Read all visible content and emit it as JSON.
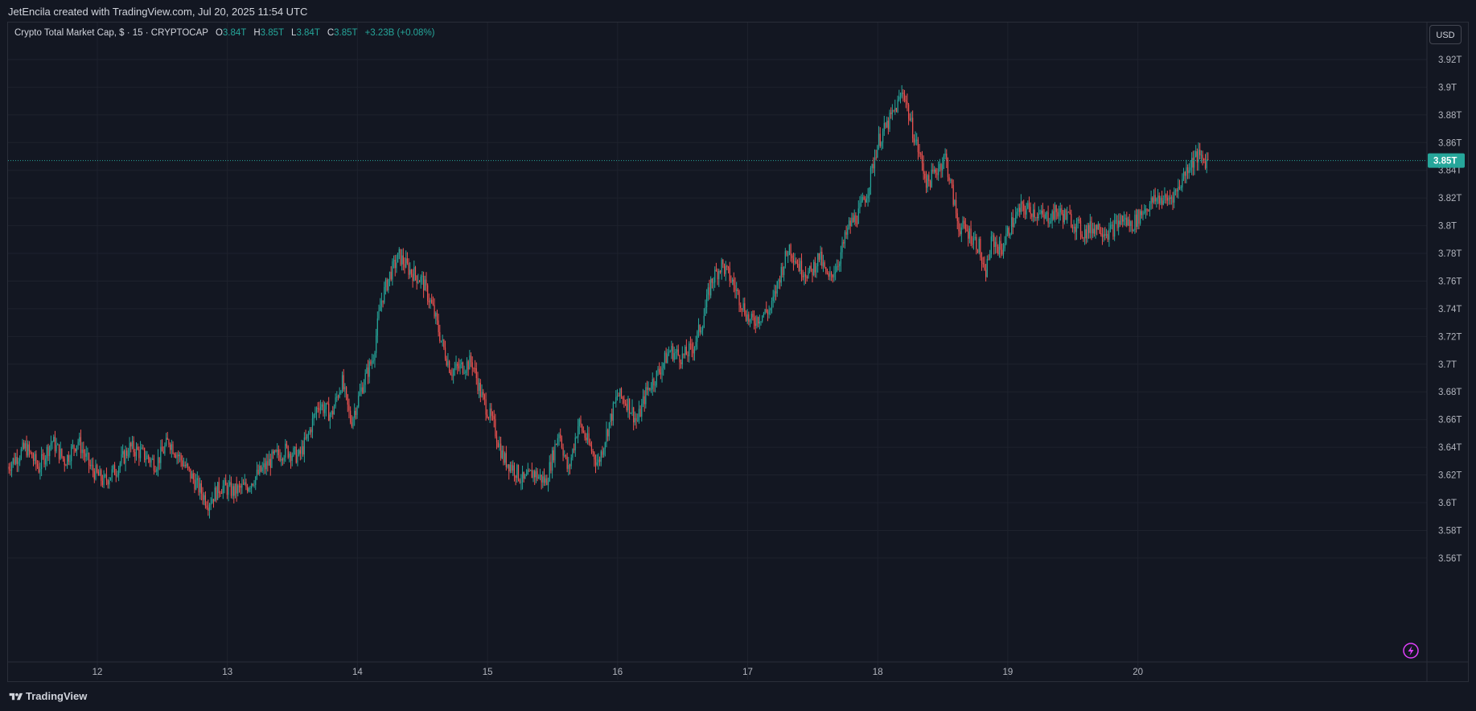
{
  "header": {
    "title": "JetEncila created with TradingView.com, Jul 20, 2025 11:54 UTC"
  },
  "legend": {
    "symbol": "Crypto Total Market Cap, $ · 15 · CRYPTOCAP",
    "open_label": "O",
    "open": "3.84T",
    "high_label": "H",
    "high": "3.85T",
    "low_label": "L",
    "low": "3.84T",
    "close_label": "C",
    "close": "3.85T",
    "change": "+3.23B (+0.08%)"
  },
  "currency_button": "USD",
  "footer": {
    "brand": "TradingView"
  },
  "icons": {
    "logo": "tradingview-logo-icon",
    "bolt": "lightning-bolt-icon"
  },
  "colors": {
    "up": "#26a69a",
    "down": "#ef5350",
    "background": "#131722",
    "grid": "#1e222d",
    "last_price": "#26a69a",
    "bolt": "#e040fb"
  },
  "chart_data": {
    "type": "candlestick",
    "title": "Crypto Total Market Cap, $ · 15 · CRYPTOCAP",
    "interval": "15",
    "grid": true,
    "ylim": [
      3.55,
      3.93
    ],
    "y_ticks": [
      3.56,
      3.58,
      3.6,
      3.62,
      3.64,
      3.66,
      3.68,
      3.7,
      3.72,
      3.74,
      3.76,
      3.78,
      3.8,
      3.82,
      3.84,
      3.86,
      3.88,
      3.9,
      3.92
    ],
    "y_tick_labels": [
      "3.56T",
      "3.58T",
      "3.6T",
      "3.62T",
      "3.64T",
      "3.66T",
      "3.68T",
      "3.7T",
      "3.72T",
      "3.74T",
      "3.76T",
      "3.78T",
      "3.8T",
      "3.82T",
      "3.84T",
      "3.86T",
      "3.88T",
      "3.9T",
      "3.92T"
    ],
    "xlim": [
      11.3,
      20.55
    ],
    "x_ticks": [
      12,
      13,
      14,
      15,
      16,
      17,
      18,
      19,
      20
    ],
    "x_tick_labels": [
      "12",
      "13",
      "14",
      "15",
      "16",
      "17",
      "18",
      "19",
      "20"
    ],
    "last_price": 3.847,
    "last_price_label": "3.85T",
    "close_path": [
      [
        11.3,
        3.625
      ],
      [
        11.45,
        3.64
      ],
      [
        11.55,
        3.625
      ],
      [
        11.65,
        3.645
      ],
      [
        11.75,
        3.63
      ],
      [
        11.85,
        3.645
      ],
      [
        11.95,
        3.625
      ],
      [
        12.05,
        3.615
      ],
      [
        12.15,
        3.625
      ],
      [
        12.25,
        3.64
      ],
      [
        12.35,
        3.635
      ],
      [
        12.45,
        3.628
      ],
      [
        12.55,
        3.645
      ],
      [
        12.65,
        3.63
      ],
      [
        12.75,
        3.615
      ],
      [
        12.85,
        3.6
      ],
      [
        12.95,
        3.612
      ],
      [
        13.05,
        3.608
      ],
      [
        13.15,
        3.612
      ],
      [
        13.25,
        3.622
      ],
      [
        13.35,
        3.632
      ],
      [
        13.45,
        3.638
      ],
      [
        13.55,
        3.633
      ],
      [
        13.62,
        3.648
      ],
      [
        13.7,
        3.672
      ],
      [
        13.8,
        3.663
      ],
      [
        13.88,
        3.688
      ],
      [
        13.95,
        3.658
      ],
      [
        14.05,
        3.688
      ],
      [
        14.12,
        3.705
      ],
      [
        14.18,
        3.745
      ],
      [
        14.25,
        3.765
      ],
      [
        14.32,
        3.778
      ],
      [
        14.4,
        3.768
      ],
      [
        14.5,
        3.76
      ],
      [
        14.58,
        3.74
      ],
      [
        14.65,
        3.715
      ],
      [
        14.72,
        3.695
      ],
      [
        14.8,
        3.698
      ],
      [
        14.88,
        3.702
      ],
      [
        14.95,
        3.678
      ],
      [
        15.05,
        3.655
      ],
      [
        15.12,
        3.632
      ],
      [
        15.2,
        3.625
      ],
      [
        15.28,
        3.615
      ],
      [
        15.35,
        3.622
      ],
      [
        15.45,
        3.615
      ],
      [
        15.55,
        3.652
      ],
      [
        15.62,
        3.622
      ],
      [
        15.7,
        3.658
      ],
      [
        15.78,
        3.642
      ],
      [
        15.85,
        3.628
      ],
      [
        15.92,
        3.652
      ],
      [
        16.0,
        3.678
      ],
      [
        16.08,
        3.672
      ],
      [
        16.15,
        3.658
      ],
      [
        16.22,
        3.68
      ],
      [
        16.32,
        3.695
      ],
      [
        16.4,
        3.71
      ],
      [
        16.5,
        3.705
      ],
      [
        16.58,
        3.712
      ],
      [
        16.65,
        3.73
      ],
      [
        16.72,
        3.76
      ],
      [
        16.8,
        3.772
      ],
      [
        16.88,
        3.76
      ],
      [
        16.95,
        3.745
      ],
      [
        17.02,
        3.73
      ],
      [
        17.1,
        3.735
      ],
      [
        17.18,
        3.74
      ],
      [
        17.25,
        3.765
      ],
      [
        17.32,
        3.785
      ],
      [
        17.4,
        3.77
      ],
      [
        17.48,
        3.765
      ],
      [
        17.55,
        3.778
      ],
      [
        17.62,
        3.76
      ],
      [
        17.7,
        3.775
      ],
      [
        17.78,
        3.8
      ],
      [
        17.85,
        3.808
      ],
      [
        17.92,
        3.825
      ],
      [
        18.0,
        3.86
      ],
      [
        18.07,
        3.872
      ],
      [
        18.14,
        3.885
      ],
      [
        18.2,
        3.898
      ],
      [
        18.25,
        3.875
      ],
      [
        18.32,
        3.852
      ],
      [
        18.38,
        3.83
      ],
      [
        18.45,
        3.84
      ],
      [
        18.52,
        3.85
      ],
      [
        18.58,
        3.82
      ],
      [
        18.62,
        3.8
      ],
      [
        18.7,
        3.795
      ],
      [
        18.78,
        3.785
      ],
      [
        18.82,
        3.762
      ],
      [
        18.88,
        3.79
      ],
      [
        18.95,
        3.782
      ],
      [
        19.02,
        3.8
      ],
      [
        19.1,
        3.812
      ],
      [
        19.18,
        3.812
      ],
      [
        19.28,
        3.805
      ],
      [
        19.38,
        3.81
      ],
      [
        19.48,
        3.805
      ],
      [
        19.58,
        3.795
      ],
      [
        19.68,
        3.8
      ],
      [
        19.78,
        3.795
      ],
      [
        19.88,
        3.805
      ],
      [
        19.95,
        3.8
      ],
      [
        20.05,
        3.812
      ],
      [
        20.15,
        3.82
      ],
      [
        20.22,
        3.818
      ],
      [
        20.3,
        3.825
      ],
      [
        20.38,
        3.842
      ],
      [
        20.45,
        3.85
      ],
      [
        20.52,
        3.847
      ]
    ]
  }
}
